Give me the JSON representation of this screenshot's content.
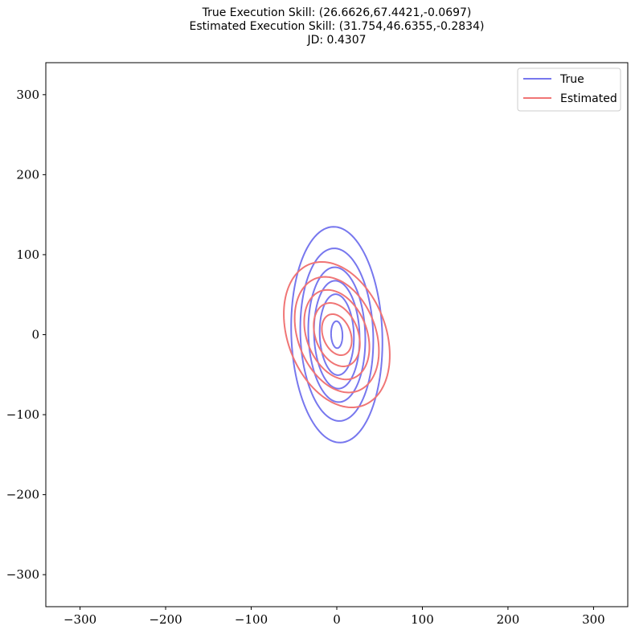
{
  "titles": {
    "line1": "True Execution Skill: (26.6626,67.4421,-0.0697)",
    "line2": "Estimated Execution Skill: (31.754,46.6355,-0.2834)",
    "line3": "JD: 0.4307"
  },
  "chart_data": {
    "type": "contour",
    "xlim": [
      -340,
      340
    ],
    "ylim": [
      -340,
      340
    ],
    "xticks": [
      -300,
      -200,
      -100,
      0,
      100,
      200,
      300
    ],
    "yticks": [
      -300,
      -200,
      -100,
      0,
      100,
      200,
      300
    ],
    "tick_labels": [
      "−300",
      "−200",
      "−100",
      "0",
      "100",
      "200",
      "300"
    ],
    "grid": false,
    "legend_position": "top-right",
    "series": [
      {
        "name": "True",
        "color": "#7777ee",
        "center": [
          0,
          0
        ],
        "sigma_x": 26.6626,
        "sigma_y": 67.4421,
        "rho": -0.0697,
        "contour_levels_mahalanobis": [
          0.25,
          0.75,
          1.0,
          1.25,
          1.6,
          2.0
        ]
      },
      {
        "name": "Estimated",
        "color": "#f07575",
        "center": [
          0,
          0
        ],
        "sigma_x": 31.754,
        "sigma_y": 46.6355,
        "rho": -0.2834,
        "contour_levels_mahalanobis": [
          0.55,
          0.85,
          1.2,
          1.55,
          1.95
        ]
      }
    ]
  }
}
